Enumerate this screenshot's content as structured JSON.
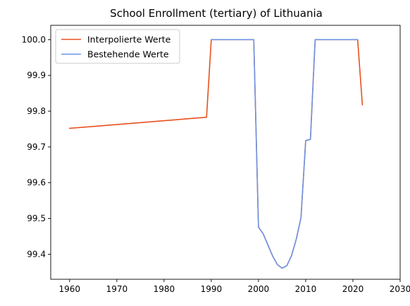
{
  "chart_data": {
    "type": "line",
    "title": "School Enrollment (tertiary) of Lithuania",
    "xlabel": "",
    "ylabel": "",
    "xlim": [
      1956,
      2030
    ],
    "ylim": [
      99.33,
      100.04
    ],
    "xticks": [
      1960,
      1970,
      1980,
      1990,
      2000,
      2010,
      2020,
      2030
    ],
    "yticks": [
      99.4,
      99.5,
      99.6,
      99.7,
      99.8,
      99.9,
      100.0
    ],
    "ytick_labels": [
      "99.4",
      "99.5",
      "99.6",
      "99.7",
      "99.8",
      "99.9",
      "100.0"
    ],
    "grid": false,
    "legend_position": "top-left",
    "series": [
      {
        "name": "Interpolierte Werte",
        "color": "#e8501e",
        "x": [
          1960,
          1989,
          1990,
          1999,
          2000,
          2001,
          2002,
          2003,
          2004,
          2005,
          2006,
          2007,
          2008,
          2009,
          2010,
          2011,
          2012,
          2021,
          2022
        ],
        "y": [
          99.752,
          99.783,
          100.0,
          100.0,
          99.476,
          99.457,
          99.426,
          99.395,
          99.371,
          99.361,
          99.368,
          99.396,
          99.442,
          99.502,
          99.718,
          99.721,
          100.0,
          100.0,
          99.818
        ]
      },
      {
        "name": "Bestehende Werte",
        "color": "#6f95e5",
        "x": [
          1990,
          1999,
          2000,
          2001,
          2002,
          2003,
          2004,
          2005,
          2006,
          2007,
          2008,
          2009,
          2010,
          2011,
          2012,
          2021
        ],
        "y": [
          100.0,
          100.0,
          99.476,
          99.457,
          99.426,
          99.395,
          99.371,
          99.361,
          99.368,
          99.396,
          99.442,
          99.502,
          99.718,
          99.721,
          100.0,
          100.0
        ]
      }
    ]
  }
}
